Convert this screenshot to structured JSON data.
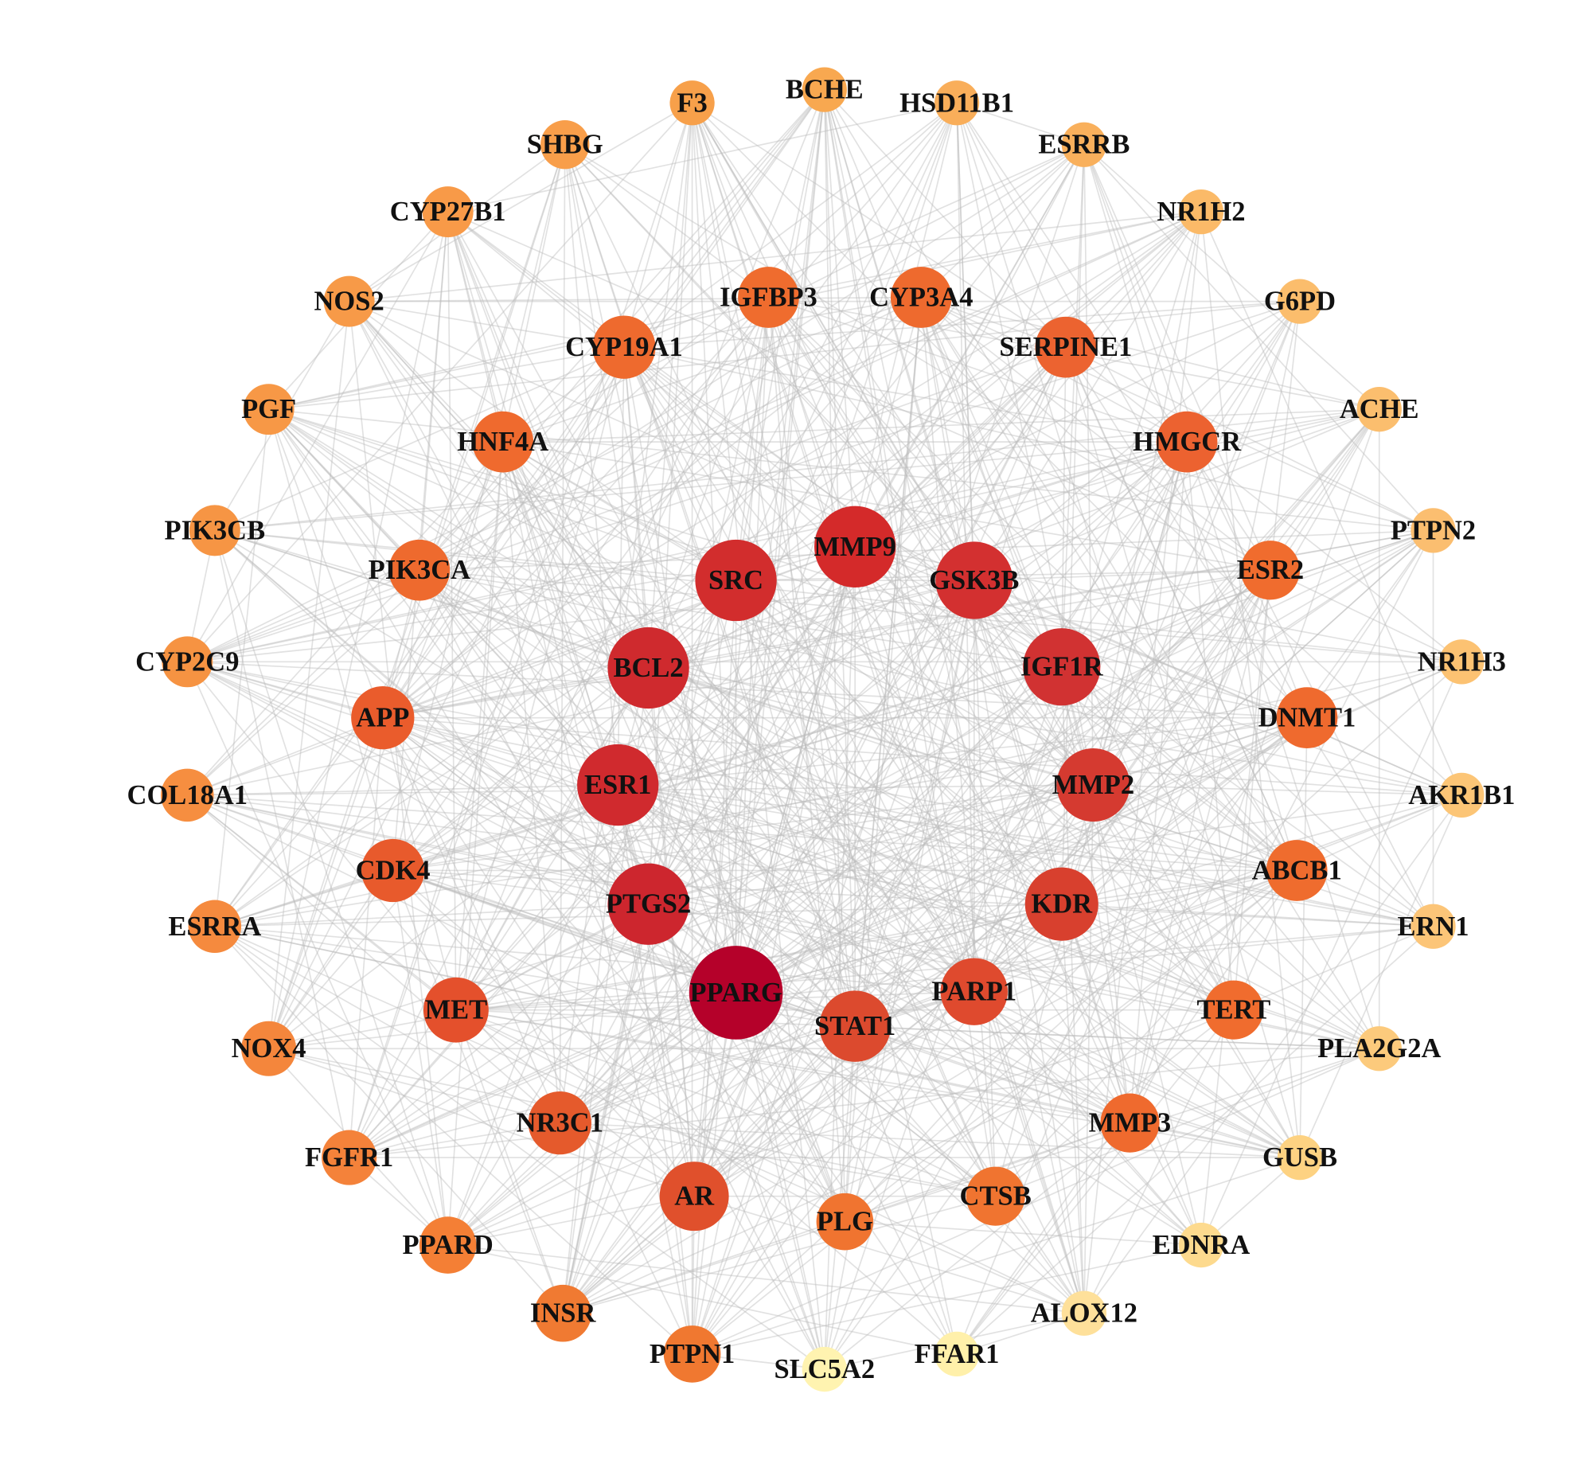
{
  "nodes": [
    {
      "label": "F3"
    },
    {
      "label": "BCHE"
    },
    {
      "label": "HSD11B1"
    },
    {
      "label": "ESRRB"
    },
    {
      "label": "NR1H2"
    },
    {
      "label": "G6PD"
    },
    {
      "label": "ACHE"
    },
    {
      "label": "PTPN2"
    },
    {
      "label": "NR1H3"
    },
    {
      "label": "AKR1B1"
    },
    {
      "label": "ERN1"
    },
    {
      "label": "PLA2G2A"
    },
    {
      "label": "GUSB"
    },
    {
      "label": "EDNRA"
    },
    {
      "label": "ALOX12"
    },
    {
      "label": "FFAR1"
    },
    {
      "label": "SLC5A2"
    },
    {
      "label": "PTPN1"
    },
    {
      "label": "INSR"
    },
    {
      "label": "PPARD"
    },
    {
      "label": "FGFR1"
    },
    {
      "label": "NOX4"
    },
    {
      "label": "ESRRA"
    },
    {
      "label": "COL18A1"
    },
    {
      "label": "CYP2C9"
    },
    {
      "label": "PIK3CB"
    },
    {
      "label": "PGF"
    },
    {
      "label": "NOS2"
    },
    {
      "label": "CYP27B1"
    },
    {
      "label": "SHBG"
    },
    {
      "label": "IGFBP3"
    },
    {
      "label": "CYP3A4"
    },
    {
      "label": "SERPINE1"
    },
    {
      "label": "CYP19A1"
    },
    {
      "label": "HNF4A"
    },
    {
      "label": "HMGCR"
    },
    {
      "label": "PIK3CA"
    },
    {
      "label": "ESR2"
    },
    {
      "label": "APP"
    },
    {
      "label": "DNMT1"
    },
    {
      "label": "CDK4"
    },
    {
      "label": "ABCB1"
    },
    {
      "label": "MET"
    },
    {
      "label": "TERT"
    },
    {
      "label": "NR3C1"
    },
    {
      "label": "MMP3"
    },
    {
      "label": "AR"
    },
    {
      "label": "CTSB"
    },
    {
      "label": "PLG"
    },
    {
      "label": "SRC"
    },
    {
      "label": "MMP9"
    },
    {
      "label": "GSK3B"
    },
    {
      "label": "BCL2"
    },
    {
      "label": "IGF1R"
    },
    {
      "label": "ESR1"
    },
    {
      "label": "MMP2"
    },
    {
      "label": "PTGS2"
    },
    {
      "label": "KDR"
    },
    {
      "label": "PPARG"
    },
    {
      "label": "STAT1"
    },
    {
      "label": "PARP1"
    }
  ]
}
